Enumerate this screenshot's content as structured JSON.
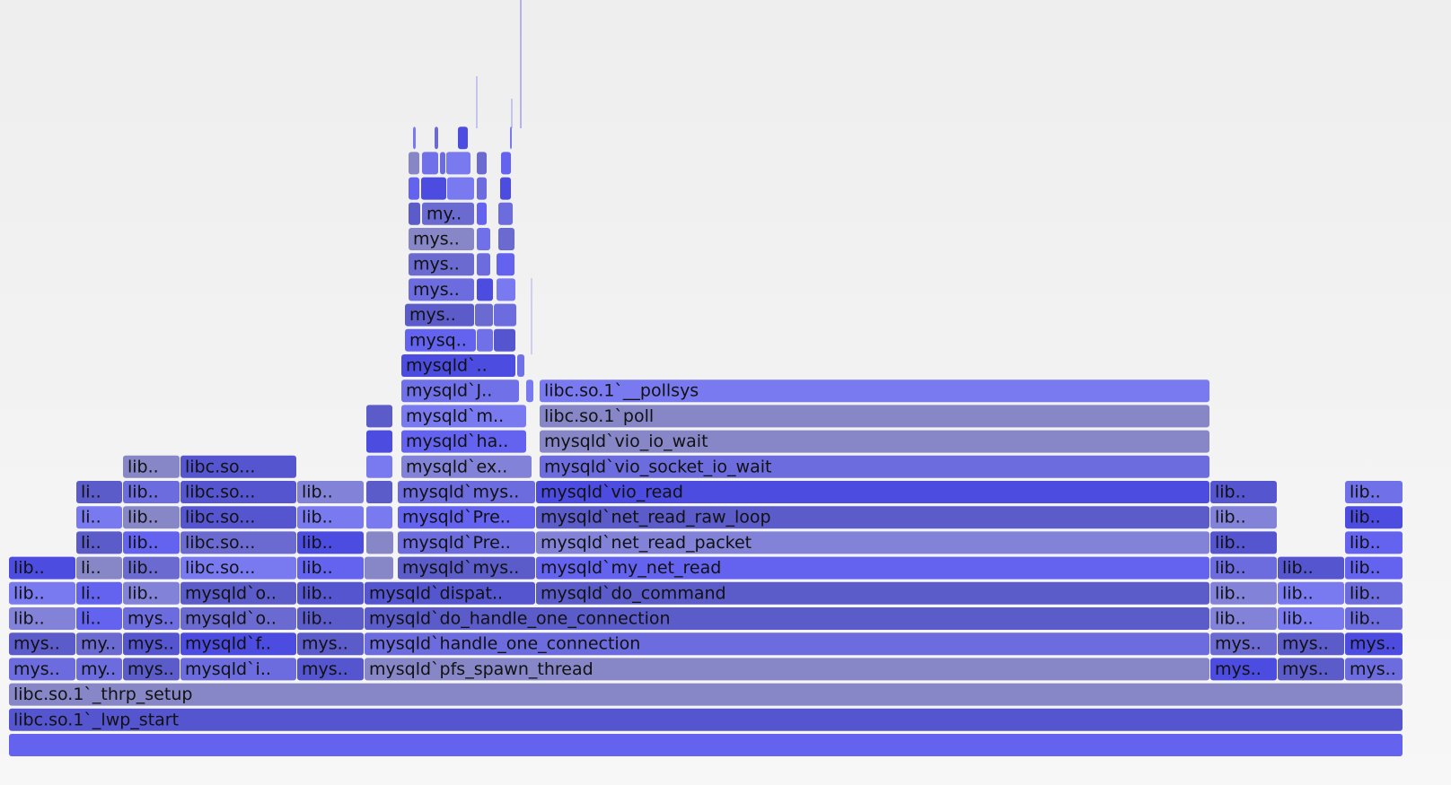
{
  "frames": [
    "libc.so.1`_lwp_start",
    "libc.so.1`_thrp_setup",
    "mys..",
    "my..",
    "mys..",
    "mysqld`i..",
    "mys..",
    "mysqld`pfs_spawn_thread",
    "mys..",
    "mys..",
    "mys..",
    "mys..",
    "my..",
    "mys..",
    "mysqld`f..",
    "mys..",
    "mysqld`handle_one_connection",
    "mys..",
    "mys..",
    "mys..",
    "lib..",
    "li..",
    "mys..",
    "mysqld`o..",
    "lib..",
    "mysqld`do_handle_one_connection",
    "lib..",
    "lib..",
    "lib..",
    "lib..",
    "li..",
    "lib..",
    "mysqld`o..",
    "lib..",
    "mysqld`dispat..",
    "mysqld`do_command",
    "lib..",
    "lib..",
    "lib..",
    "lib..",
    "li..",
    "lib..",
    "libc.so...",
    "lib..",
    "mysqld`mys..",
    "mysqld`my_net_read",
    "lib..",
    "lib..",
    "lib..",
    "li..",
    "lib..",
    "libc.so...",
    "lib..",
    "mysqld`Pre..",
    "mysqld`net_read_packet",
    "lib..",
    "lib..",
    "li..",
    "lib..",
    "libc.so...",
    "lib..",
    "mysqld`Pre..",
    "mysqld`net_read_raw_loop",
    "lib..",
    "lib..",
    "li..",
    "lib..",
    "libc.so...",
    "lib..",
    "mysqld`mys..",
    "mysqld`vio_read",
    "lib..",
    "lib..",
    "lib..",
    "libc.so...",
    "mysqld`ex..",
    "mysqld`vio_socket_io_wait",
    "mysqld`ha..",
    "mysqld`vio_io_wait",
    "mysqld`m..",
    "libc.so.1`poll",
    "mysqld`J..",
    "libc.so.1`__pollsys",
    "mysqld`..",
    "mysq..",
    "mys..",
    "mys..",
    "mys..",
    "mys..",
    "my.."
  ]
}
